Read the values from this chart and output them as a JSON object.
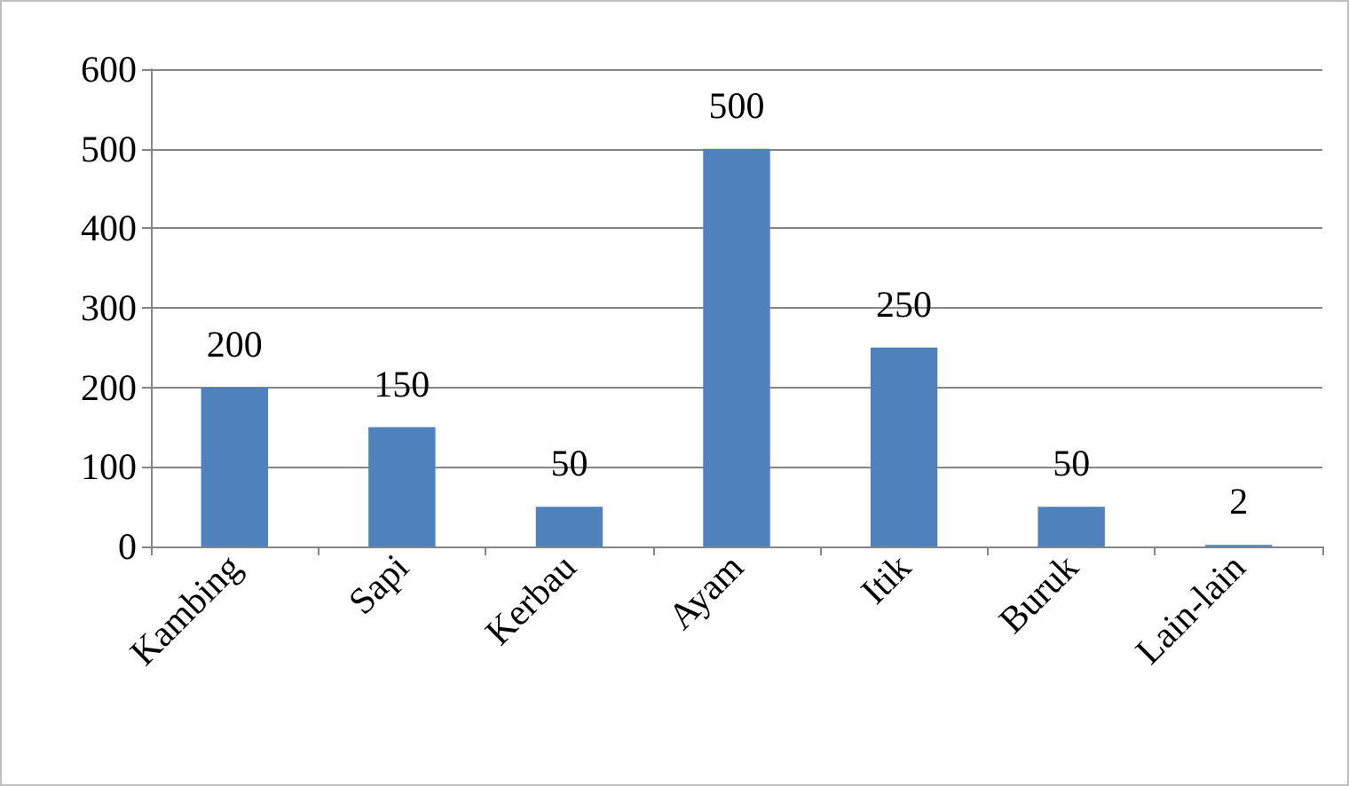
{
  "chart_data": {
    "type": "bar",
    "categories": [
      "Kambing",
      "Sapi",
      "Kerbau",
      "Ayam",
      "Itik",
      "Buruk",
      "Lain-lain"
    ],
    "values": [
      200,
      150,
      50,
      500,
      250,
      50,
      2
    ],
    "color": "#4f81bd",
    "ylim": [
      0,
      600
    ],
    "yticks": [
      0,
      100,
      200,
      300,
      400,
      500,
      600
    ],
    "grid": "y",
    "data_labels": true
  }
}
